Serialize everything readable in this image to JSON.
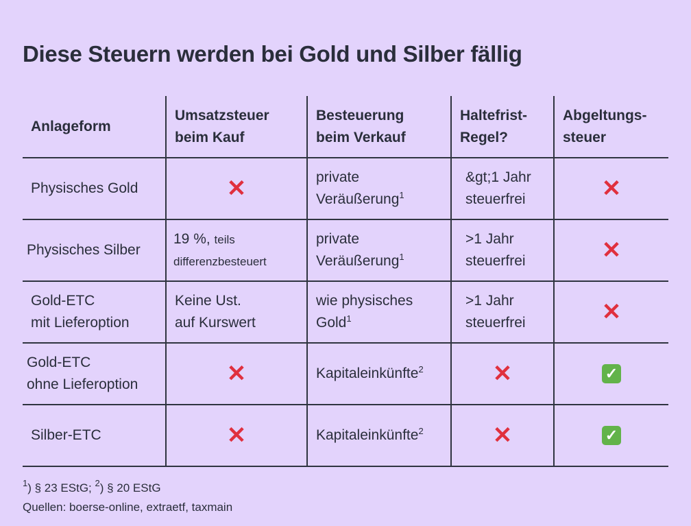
{
  "title": "Diese Steuern werden bei Gold und Silber fällig",
  "headers": [
    "Anlageform",
    "Umsatzsteuer beim Kauf",
    "Besteuerung beim Verkauf",
    "Haltefrist-Regel?",
    "Abgeltungs-steuer"
  ],
  "header_lines": [
    [
      "Anlageform"
    ],
    [
      "Umsatzsteuer",
      "beim Kauf"
    ],
    [
      "Besteuerung",
      "beim Verkauf"
    ],
    [
      "Haltefrist-",
      "Regel?"
    ],
    [
      "Abgeltungs-",
      "steuer"
    ]
  ],
  "rows": [
    {
      "form": [
        "Physisches Gold"
      ],
      "ust": {
        "icon": "cross-icon"
      },
      "verkauf": [
        "private",
        "Veräußerung"
      ],
      "verkauf_sup": "1",
      "halte": [
        "&gt;1 Jahr",
        "steuerfrei"
      ],
      "abgelt": {
        "icon": "cross-icon"
      }
    },
    {
      "form": [
        "Physisches Silber"
      ],
      "ust": {
        "main": "19 %,",
        "small1": "teils",
        "small2": "differenzbesteuert"
      },
      "verkauf": [
        "private",
        "Veräußerung"
      ],
      "verkauf_sup": "1",
      "halte": [
        ">1 Jahr",
        "steuerfrei"
      ],
      "abgelt": {
        "icon": "cross-icon"
      }
    },
    {
      "form": [
        "Gold-ETC",
        "mit Lieferoption"
      ],
      "ust": {
        "lines": [
          "Keine Ust.",
          "auf Kurswert"
        ]
      },
      "verkauf": [
        "wie physisches",
        "Gold"
      ],
      "verkauf_sup": "1",
      "halte": [
        ">1 Jahr",
        "steuerfrei"
      ],
      "abgelt": {
        "icon": "cross-icon"
      }
    },
    {
      "form": [
        "Gold-ETC",
        "ohne Lieferoption"
      ],
      "ust": {
        "icon": "cross-icon"
      },
      "verkauf": [
        "Kapitaleinkünfte"
      ],
      "verkauf_sup": "2",
      "halte": {
        "icon": "cross-icon"
      },
      "abgelt": {
        "icon": "check-icon"
      }
    },
    {
      "form": [
        "Silber-ETC"
      ],
      "ust": {
        "icon": "cross-icon"
      },
      "verkauf": [
        "Kapitaleinkünfte"
      ],
      "verkauf_sup": "2",
      "halte": {
        "icon": "cross-icon"
      },
      "abgelt": {
        "icon": "check-icon"
      }
    }
  ],
  "footnote": {
    "sup1": "1",
    "text1": ") § 23 EStG; ",
    "sup2": "2",
    "text2": ") § 20 EStG"
  },
  "sources": "Quellen: boerse-online, extraetf, taxmain",
  "colors": {
    "background": "#e3d3fc",
    "text": "#2a2e3b",
    "cross": "#e0303e",
    "check": "#62b34a"
  }
}
